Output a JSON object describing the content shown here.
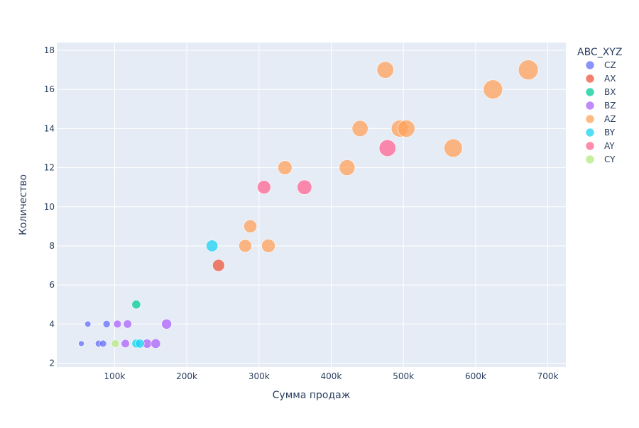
{
  "chart_data": {
    "type": "scatter",
    "title": "",
    "xlabel": "Сумма продаж",
    "ylabel": "Количество",
    "xlim": [
      20000,
      725000
    ],
    "ylim": [
      1.8,
      18.4
    ],
    "x_ticks": [
      100000,
      200000,
      300000,
      400000,
      500000,
      600000,
      700000
    ],
    "x_tick_labels": [
      "100k",
      "200k",
      "300k",
      "400k",
      "500k",
      "600k",
      "700k"
    ],
    "y_ticks": [
      2,
      4,
      6,
      8,
      10,
      12,
      14,
      16,
      18
    ],
    "y_tick_labels": [
      "2",
      "4",
      "6",
      "8",
      "10",
      "12",
      "14",
      "16",
      "18"
    ],
    "grid": true,
    "legend": {
      "title": "ABC_XYZ",
      "placement": "right"
    },
    "series": [
      {
        "name": "CZ",
        "color": "#636efa",
        "points": [
          {
            "x": 54000,
            "y": 3
          },
          {
            "x": 63000,
            "y": 4
          },
          {
            "x": 78000,
            "y": 3
          },
          {
            "x": 84000,
            "y": 3
          },
          {
            "x": 89000,
            "y": 4
          }
        ]
      },
      {
        "name": "AX",
        "color": "#ef553b",
        "points": [
          {
            "x": 244000,
            "y": 7
          }
        ]
      },
      {
        "name": "BX",
        "color": "#00cc96",
        "points": [
          {
            "x": 130000,
            "y": 5
          }
        ]
      },
      {
        "name": "BZ",
        "color": "#ab63fa",
        "points": [
          {
            "x": 104000,
            "y": 4
          },
          {
            "x": 118000,
            "y": 4
          },
          {
            "x": 115000,
            "y": 3
          },
          {
            "x": 145000,
            "y": 3
          },
          {
            "x": 157000,
            "y": 3
          },
          {
            "x": 172000,
            "y": 4
          }
        ]
      },
      {
        "name": "AZ",
        "color": "#ffa15a",
        "points": [
          {
            "x": 281000,
            "y": 8
          },
          {
            "x": 288000,
            "y": 9
          },
          {
            "x": 313000,
            "y": 8
          },
          {
            "x": 336000,
            "y": 12
          },
          {
            "x": 422000,
            "y": 12
          },
          {
            "x": 440000,
            "y": 14
          },
          {
            "x": 475000,
            "y": 17
          },
          {
            "x": 495000,
            "y": 14
          },
          {
            "x": 504000,
            "y": 14
          },
          {
            "x": 569000,
            "y": 13
          },
          {
            "x": 624000,
            "y": 16
          },
          {
            "x": 673000,
            "y": 17
          }
        ]
      },
      {
        "name": "BY",
        "color": "#19d3f3",
        "points": [
          {
            "x": 130000,
            "y": 3
          },
          {
            "x": 135000,
            "y": 3
          },
          {
            "x": 235000,
            "y": 8
          }
        ]
      },
      {
        "name": "AY",
        "color": "#ff6692",
        "points": [
          {
            "x": 307000,
            "y": 11
          },
          {
            "x": 363000,
            "y": 11
          },
          {
            "x": 478000,
            "y": 13
          }
        ]
      },
      {
        "name": "CY",
        "color": "#b6e880",
        "points": [
          {
            "x": 101000,
            "y": 3
          }
        ]
      }
    ]
  }
}
